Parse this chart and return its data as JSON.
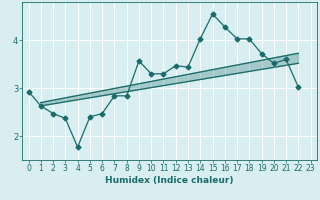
{
  "xlabel": "Humidex (Indice chaleur)",
  "xlim": [
    -0.5,
    23.5
  ],
  "ylim": [
    1.5,
    4.8
  ],
  "yticks": [
    2,
    3,
    4
  ],
  "xticks": [
    0,
    1,
    2,
    3,
    4,
    5,
    6,
    7,
    8,
    9,
    10,
    11,
    12,
    13,
    14,
    15,
    16,
    17,
    18,
    19,
    20,
    21,
    22,
    23
  ],
  "bg_color": "#d8eef0",
  "line_color": "#1a6b6b",
  "grid_color": "#ffffff",
  "line1_x": [
    0,
    1,
    2,
    3,
    4,
    5,
    6,
    7,
    8,
    9,
    10,
    11,
    12,
    13,
    14,
    15,
    16,
    17,
    18,
    19,
    20,
    21,
    22
  ],
  "line1_y": [
    2.93,
    2.63,
    2.47,
    2.37,
    1.77,
    2.4,
    2.47,
    2.84,
    2.84,
    3.57,
    3.3,
    3.3,
    3.47,
    3.44,
    4.03,
    4.55,
    4.28,
    4.03,
    4.03,
    3.72,
    3.52,
    3.6,
    3.02
  ],
  "line2_x": [
    1,
    22
  ],
  "line2_y": [
    2.63,
    3.52
  ],
  "line3_x": [
    1,
    22
  ],
  "line3_y": [
    2.7,
    3.73
  ],
  "tick_fontsize": 5.5,
  "label_fontsize": 6.5
}
